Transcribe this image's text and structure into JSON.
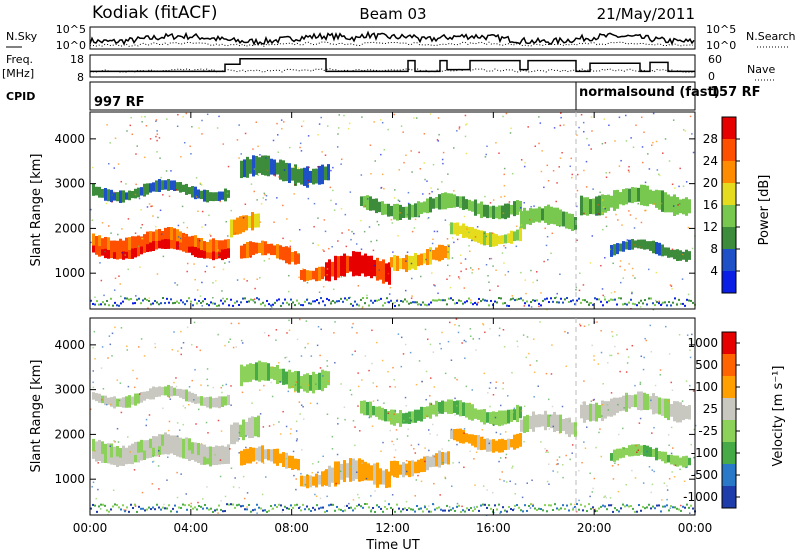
{
  "header": {
    "station": "Kodiak (fitACF)",
    "beam": "Beam 03",
    "date": "21/May/2011"
  },
  "top_strips": {
    "nsky_label": "N.Sky",
    "nsky_ticks": [
      "10^5",
      "10^0"
    ],
    "nsearch_label": "N.Search",
    "nsearch_ticks": [
      "10^5",
      "10^0"
    ],
    "freq_label": "Freq.",
    "freq_unit": "[MHz]",
    "freq_ticks": [
      "18",
      "8"
    ],
    "nave_label": "Nave",
    "nave_ticks": [
      "60",
      "0"
    ],
    "cpid_label": "CPID",
    "cpid_left": "997 RF",
    "cpid_right_name": "normalsound (fast)",
    "cpid_right_value": "157 RF"
  },
  "chart_data": [
    {
      "type": "heatmap",
      "name": "power",
      "ylabel": "Slant Range [km]",
      "ylim": [
        200,
        4600
      ],
      "yticks": [
        "1000",
        "2000",
        "3000",
        "4000"
      ],
      "colorbar": {
        "label": "Power [dB]",
        "ticks": [
          "4",
          "8",
          "12",
          "16",
          "20",
          "24",
          "28"
        ],
        "colors": [
          "#0a1ee6",
          "#1e50c8",
          "#3c8c3c",
          "#78c850",
          "#e6dc1e",
          "#ff8c00",
          "#ff5000",
          "#e60000"
        ]
      }
    },
    {
      "type": "heatmap",
      "name": "velocity",
      "ylabel": "Slant Range [km]",
      "ylim": [
        200,
        4600
      ],
      "yticks": [
        "1000",
        "2000",
        "3000",
        "4000"
      ],
      "colorbar": {
        "label": "Velocity [m s⁻¹]",
        "ticks": [
          "1000",
          "500",
          "100",
          "25",
          "-25",
          "-100",
          "-500",
          "-1000"
        ],
        "colors": [
          "#1e3caa",
          "#2a78c8",
          "#46aa46",
          "#8cd25a",
          "#c8c8c0",
          "#ffa000",
          "#ff6400",
          "#e60000"
        ]
      }
    }
  ],
  "time_axis": {
    "xlabel": "Time UT",
    "ticks": [
      "00:00",
      "04:00",
      "08:00",
      "12:00",
      "16:00",
      "20:00",
      "00:00"
    ]
  }
}
